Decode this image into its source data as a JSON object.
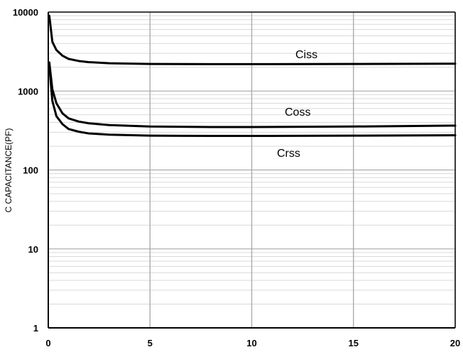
{
  "chart_data": {
    "type": "line",
    "title": "",
    "xlabel": "",
    "ylabel": "C CAPACITANCE(PF)",
    "xlim": [
      0,
      20
    ],
    "ylim": [
      1,
      10000
    ],
    "y_scale": "log",
    "x_ticks": [
      "0",
      "5",
      "10",
      "15",
      "20"
    ],
    "y_ticks": [
      "1",
      "10",
      "100",
      "1000",
      "10000"
    ],
    "grid": true,
    "series": [
      {
        "name": "Ciss",
        "x": [
          0.05,
          0.2,
          0.4,
          0.7,
          1,
          1.5,
          2,
          3,
          5,
          8,
          10,
          15,
          20
        ],
        "y": [
          9000,
          4200,
          3300,
          2800,
          2550,
          2400,
          2320,
          2250,
          2200,
          2190,
          2190,
          2200,
          2220
        ]
      },
      {
        "name": "Coss",
        "x": [
          0.05,
          0.2,
          0.4,
          0.7,
          1,
          1.5,
          2,
          3,
          5,
          8,
          10,
          15,
          20
        ],
        "y": [
          2300,
          1050,
          700,
          520,
          450,
          410,
          390,
          370,
          355,
          350,
          350,
          355,
          365
        ]
      },
      {
        "name": "Crss",
        "x": [
          0.05,
          0.2,
          0.4,
          0.7,
          1,
          1.5,
          2,
          3,
          5,
          8,
          10,
          15,
          20
        ],
        "y": [
          2100,
          750,
          480,
          380,
          330,
          305,
          290,
          280,
          272,
          270,
          270,
          272,
          275
        ]
      }
    ]
  },
  "labels": {
    "ciss": "Ciss",
    "coss": "Coss",
    "crss": "Crss"
  }
}
